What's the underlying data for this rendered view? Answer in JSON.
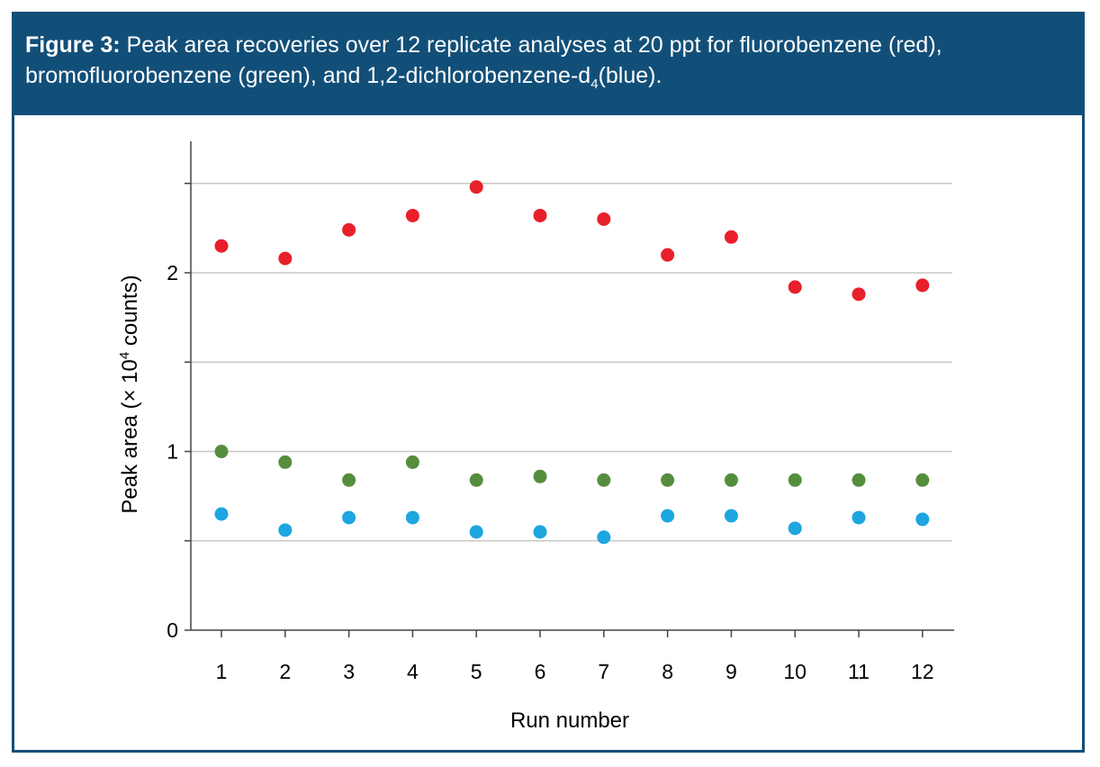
{
  "caption": {
    "label": "Figure 3:",
    "line1": "Peak area recoveries over 12 replicate analyses at 20 ppt for fluorobenzene (red),",
    "line2_pre": "bromofluorobenzene (green), and 1,2-dichlorobenzene-d",
    "line2_sub": "4",
    "line2_post": "(blue)."
  },
  "chart_data": {
    "type": "scatter",
    "title": "",
    "xlabel": "Run number",
    "ylabel_pre": "Peak area (× 10",
    "ylabel_sup": "4",
    "ylabel_post": " counts)",
    "x": [
      1,
      2,
      3,
      4,
      5,
      6,
      7,
      8,
      9,
      10,
      11,
      12
    ],
    "x_tick_labels": [
      "1",
      "2",
      "3",
      "4",
      "5",
      "6",
      "7",
      "8",
      "9",
      "10",
      "11",
      "12"
    ],
    "xlim": [
      0.5,
      12.5
    ],
    "ylim": [
      0,
      2.75
    ],
    "y_tick_labels": [
      {
        "value": 0,
        "label": "0"
      },
      {
        "value": 1,
        "label": "1"
      },
      {
        "value": 2,
        "label": "2"
      }
    ],
    "y_minor_ticks": [
      0.5,
      1.5,
      2.5
    ],
    "gridlines": [
      0.5,
      1,
      1.5,
      2,
      2.5
    ],
    "grid": true,
    "series": [
      {
        "color": "#e8202a",
        "values": [
          2.15,
          2.08,
          2.24,
          2.32,
          2.48,
          2.32,
          2.3,
          2.1,
          2.2,
          1.92,
          1.88,
          1.93
        ]
      },
      {
        "color": "#568d3d",
        "values": [
          1.0,
          0.94,
          0.84,
          0.94,
          0.84,
          0.86,
          0.84,
          0.84,
          0.84,
          0.84,
          0.84,
          0.84
        ]
      },
      {
        "color": "#1da6e0",
        "values": [
          0.65,
          0.56,
          0.63,
          0.63,
          0.55,
          0.55,
          0.52,
          0.64,
          0.64,
          0.57,
          0.63,
          0.62
        ]
      }
    ]
  }
}
